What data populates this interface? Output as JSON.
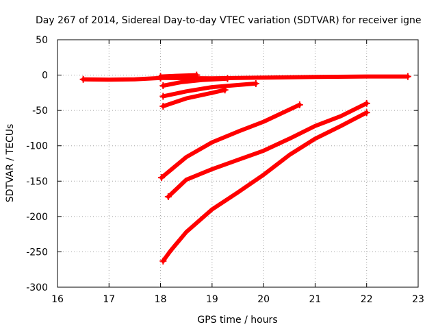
{
  "chart_data": {
    "type": "scatter",
    "title": "Day 267 of 2014, Sidereal Day-to-day VTEC variation (SDTVAR) for receiver igne",
    "xlabel": "GPS time / hours",
    "ylabel": "SDTVAR / TECUs",
    "xlim": [
      16,
      23
    ],
    "ylim": [
      -300,
      50
    ],
    "x_ticks": [
      16,
      17,
      18,
      19,
      20,
      21,
      22,
      23
    ],
    "y_ticks": [
      -300,
      -250,
      -200,
      -150,
      -100,
      -50,
      0,
      50
    ],
    "x_tick_labels": [
      "16",
      "17",
      "18",
      "19",
      "20",
      "21",
      "22",
      "23"
    ],
    "y_tick_labels": [
      "-300",
      "-250",
      "-200",
      "-150",
      "-100",
      "-50",
      "0",
      "50"
    ],
    "grid": true,
    "legend": "none",
    "marker": "plus",
    "color": "#ff0000",
    "series": [
      {
        "points": [
          [
            16.5,
            -6
          ],
          [
            17.0,
            -6.5
          ],
          [
            17.5,
            -6
          ],
          [
            18.0,
            -4
          ]
        ]
      },
      {
        "points": [
          [
            18.0,
            -2
          ],
          [
            18.3,
            -1
          ],
          [
            18.7,
            0
          ]
        ]
      },
      {
        "points": [
          [
            18.0,
            -4
          ],
          [
            19.0,
            -4.5
          ],
          [
            20.0,
            -3.5
          ],
          [
            21.0,
            -2.5
          ],
          [
            22.0,
            -2
          ],
          [
            22.8,
            -2
          ]
        ]
      },
      {
        "points": [
          [
            18.05,
            -15
          ],
          [
            18.4,
            -10
          ],
          [
            18.8,
            -7
          ],
          [
            19.3,
            -5
          ]
        ]
      },
      {
        "points": [
          [
            18.05,
            -30
          ],
          [
            18.5,
            -23
          ],
          [
            19.0,
            -17
          ],
          [
            19.5,
            -14
          ],
          [
            19.85,
            -12
          ]
        ]
      },
      {
        "points": [
          [
            18.05,
            -44
          ],
          [
            18.5,
            -33
          ],
          [
            19.0,
            -25
          ],
          [
            19.25,
            -21
          ]
        ]
      },
      {
        "points": [
          [
            18.02,
            -145
          ],
          [
            18.5,
            -116
          ],
          [
            19.0,
            -95
          ],
          [
            19.5,
            -80
          ],
          [
            20.0,
            -66
          ],
          [
            20.7,
            -42
          ]
        ]
      },
      {
        "points": [
          [
            18.15,
            -172
          ],
          [
            18.5,
            -148
          ],
          [
            19.0,
            -133
          ],
          [
            19.5,
            -120
          ],
          [
            20.0,
            -107
          ],
          [
            20.5,
            -90
          ],
          [
            21.0,
            -72
          ],
          [
            21.5,
            -58
          ],
          [
            22.0,
            -40
          ]
        ]
      },
      {
        "points": [
          [
            18.05,
            -263
          ],
          [
            18.2,
            -248
          ],
          [
            18.5,
            -222
          ],
          [
            19.0,
            -190
          ],
          [
            19.5,
            -166
          ],
          [
            20.0,
            -141
          ],
          [
            20.5,
            -113
          ],
          [
            21.0,
            -90
          ],
          [
            21.5,
            -72
          ],
          [
            22.0,
            -53
          ]
        ]
      }
    ]
  }
}
